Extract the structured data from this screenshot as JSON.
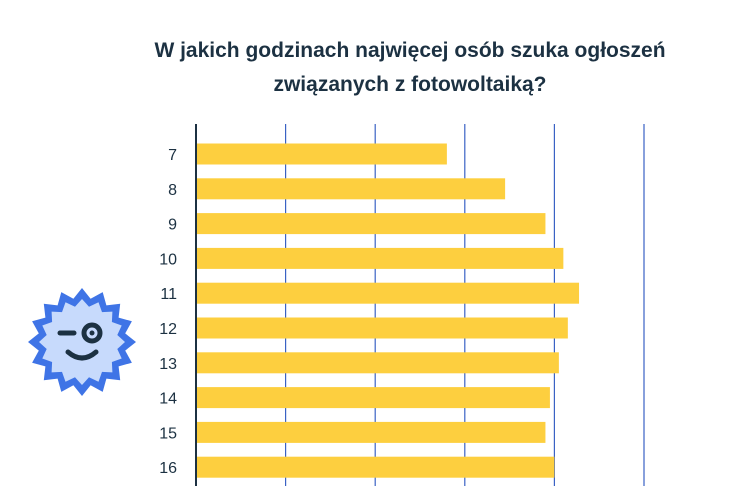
{
  "title_line1": "W jakich godzinach najwięcej osób szuka ogłoszeń",
  "title_line2": "związanych z fotowoltaiką?",
  "colors": {
    "bar": "#fdcf3f",
    "grid": "#3a62c4",
    "axis": "#1c3142",
    "text": "#1c3142",
    "mascot_outer": "#3f74e6",
    "mascot_inner": "#c7dafc"
  },
  "mascot_icon": "winking-sun-mascot-icon",
  "chart_data": {
    "type": "bar",
    "orientation": "horizontal",
    "categories": [
      "7",
      "8",
      "9",
      "10",
      "11",
      "12",
      "13",
      "14",
      "15",
      "16"
    ],
    "values": [
      56,
      69,
      78,
      82,
      85.5,
      83,
      81,
      79,
      78,
      80
    ],
    "xlim": [
      0,
      100
    ],
    "grid": true,
    "title": "W jakich godzinach najwięcej osób szuka ogłoszeń związanych z fotowoltaiką?"
  }
}
